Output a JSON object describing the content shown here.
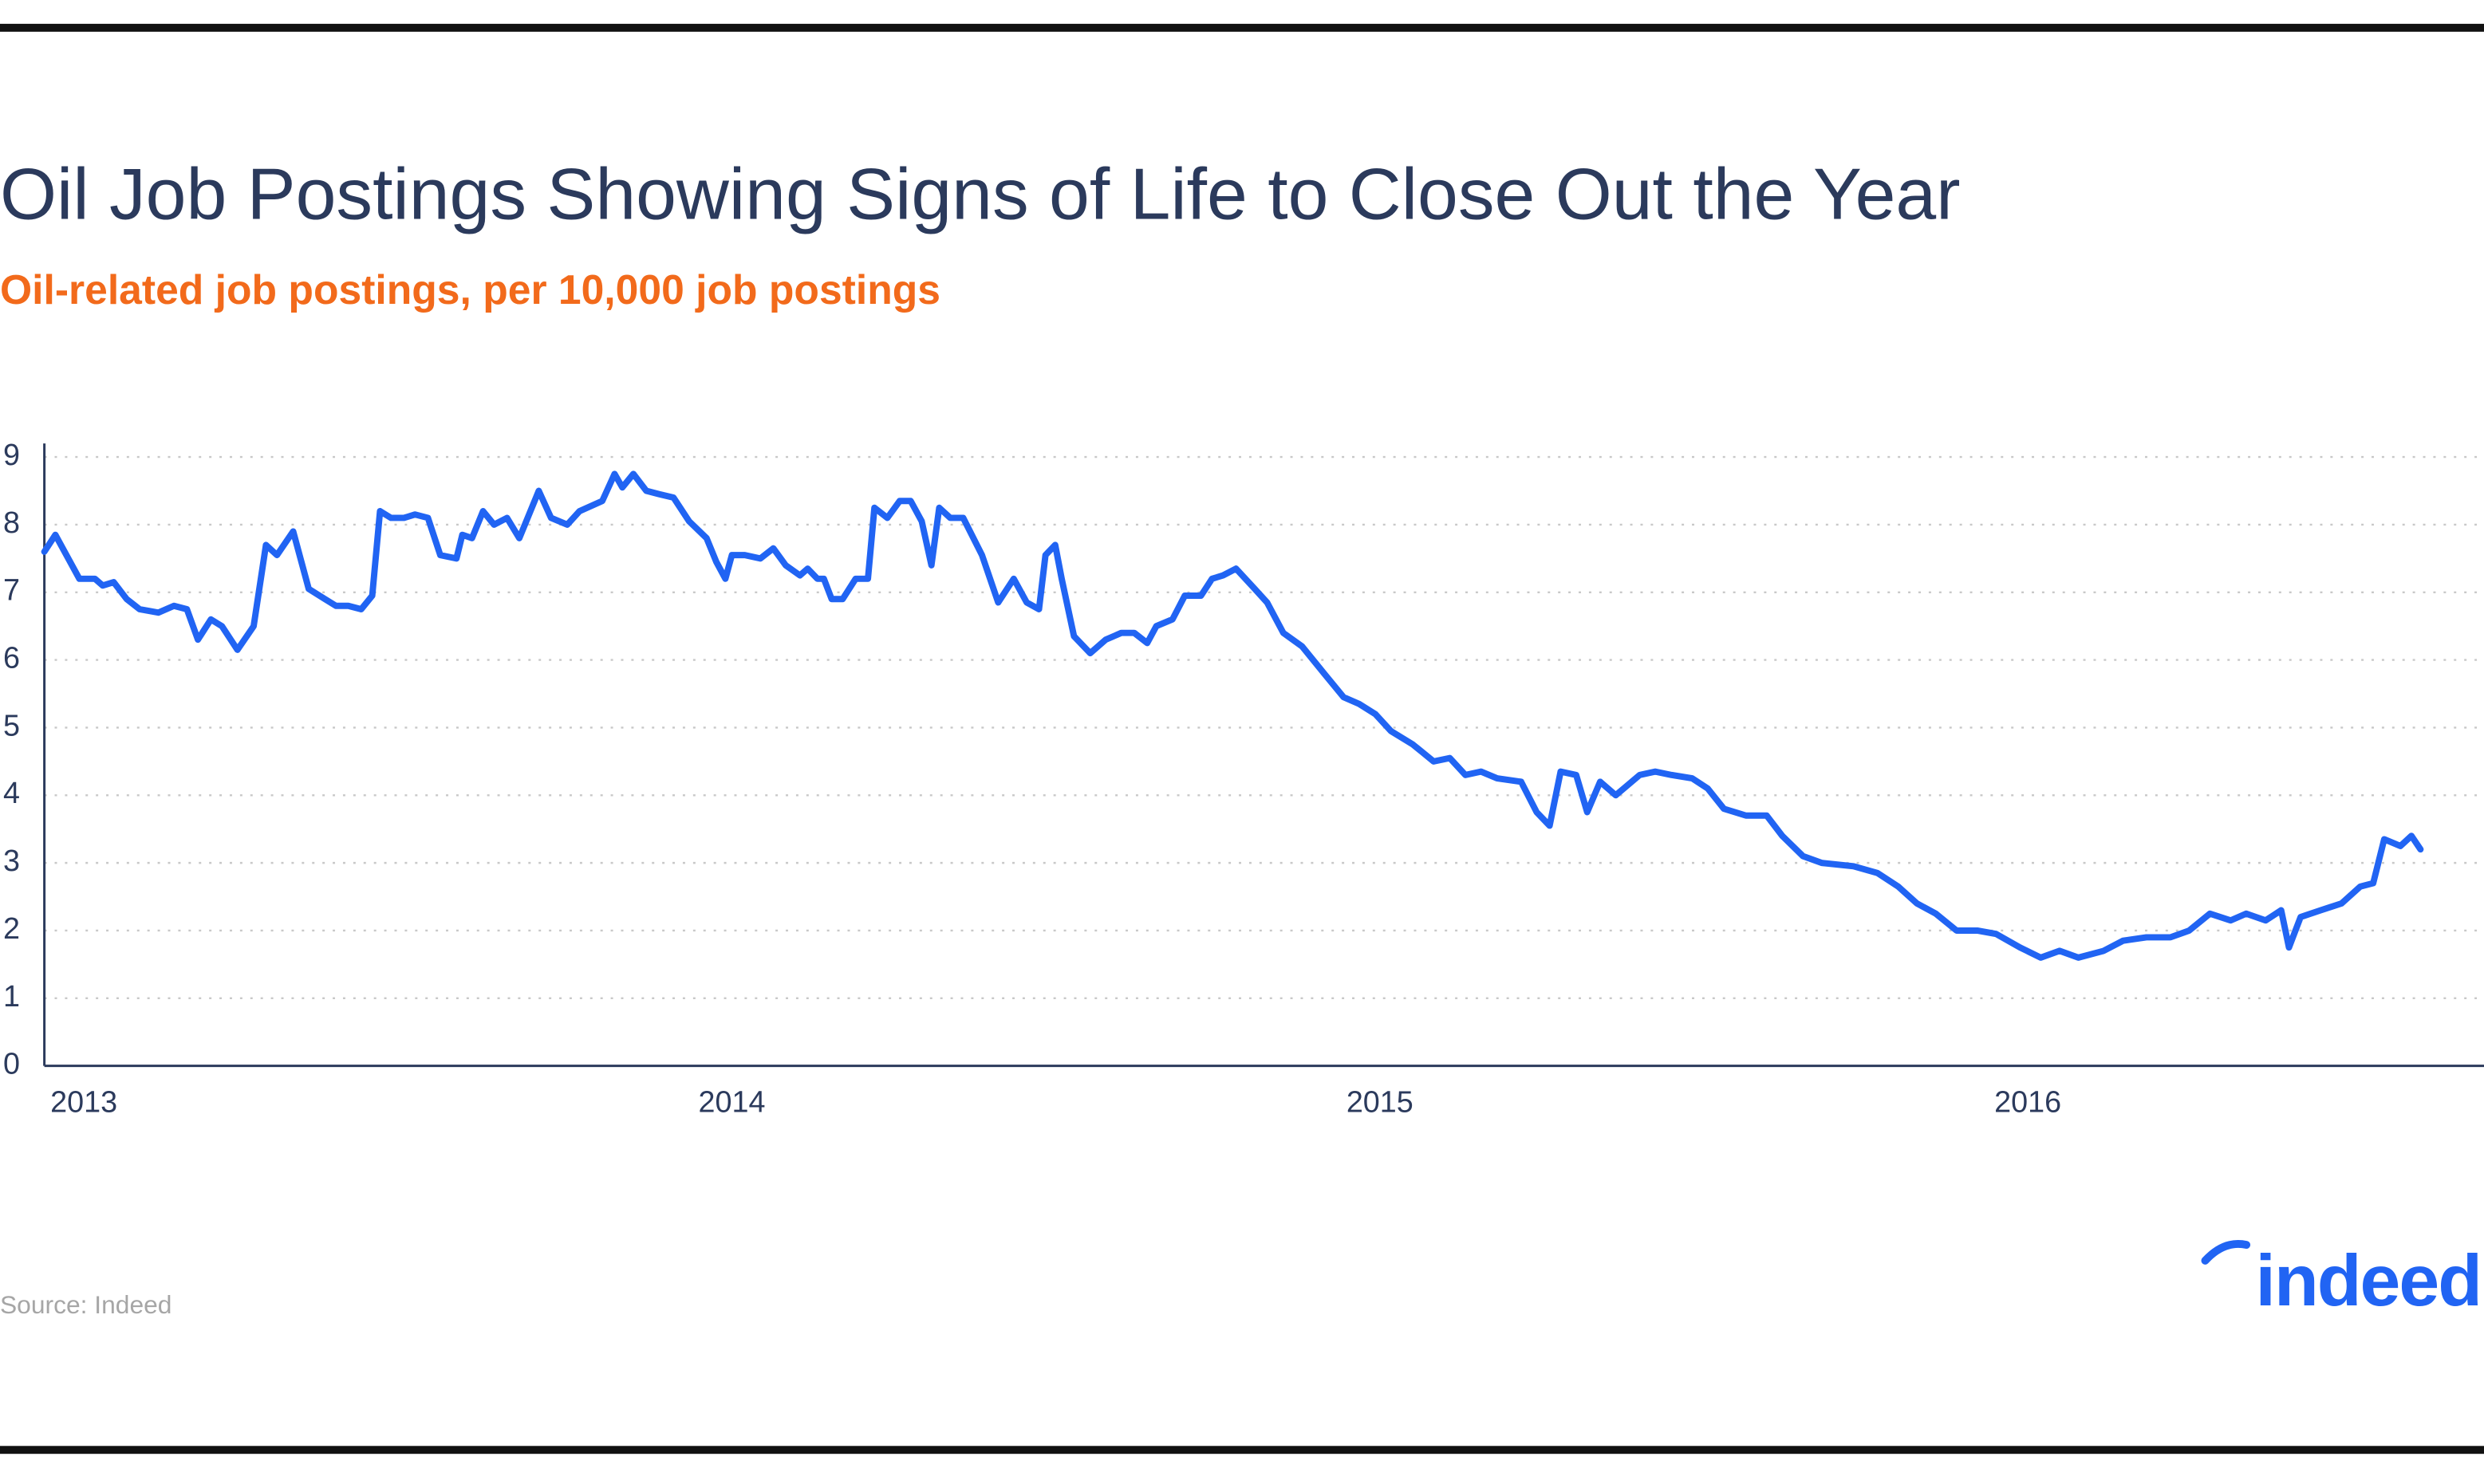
{
  "chart_data": {
    "type": "line",
    "title": "Oil Job Postings Showing Signs of Life to Close Out the Year",
    "subtitle": "Oil-related job postings, per 10,000 job postings",
    "source": "Source: Indeed",
    "color": "#2164f3",
    "grid": true,
    "x": [
      2012.939,
      2012.956,
      2012.993,
      2013.017,
      2013.029,
      2013.046,
      2013.066,
      2013.086,
      2013.115,
      2013.139,
      2013.159,
      2013.176,
      2013.196,
      2013.213,
      2013.237,
      2013.262,
      2013.281,
      2013.298,
      2013.323,
      2013.347,
      2013.372,
      2013.389,
      2013.408,
      2013.428,
      2013.445,
      2013.457,
      2013.474,
      2013.494,
      2013.511,
      2013.531,
      2013.55,
      2013.575,
      2013.584,
      2013.599,
      2013.616,
      2013.633,
      2013.653,
      2013.672,
      2013.702,
      2013.721,
      2013.746,
      2013.765,
      2013.8,
      2013.819,
      2013.831,
      2013.848,
      2013.868,
      2013.888,
      2013.91,
      2013.934,
      2013.961,
      2013.976,
      2013.99,
      2014,
      2014.02,
      2014.044,
      2014.064,
      2014.083,
      2014.105,
      2014.117,
      2014.132,
      2014.142,
      2014.154,
      2014.171,
      2014.191,
      2014.21,
      2014.22,
      2014.24,
      2014.259,
      2014.276,
      2014.293,
      2014.308,
      2014.32,
      2014.337,
      2014.357,
      2014.386,
      2014.411,
      2014.435,
      2014.455,
      2014.474,
      2014.484,
      2014.499,
      2014.509,
      2014.528,
      2014.553,
      2014.577,
      2014.601,
      2014.621,
      2014.641,
      2014.655,
      2014.68,
      2014.699,
      2014.724,
      2014.741,
      2014.758,
      2014.778,
      2014.807,
      2014.826,
      2014.851,
      2014.88,
      2014.914,
      2014.944,
      2014.968,
      2014.993,
      2015.017,
      2015.051,
      2015.083,
      2015.108,
      2015.132,
      2015.156,
      2015.181,
      2015.218,
      2015.242,
      2015.262,
      2015.279,
      2015.303,
      2015.32,
      2015.34,
      2015.364,
      2015.401,
      2015.425,
      2015.45,
      2015.482,
      2015.506,
      2015.531,
      2015.565,
      2015.597,
      2015.621,
      2015.653,
      2015.682,
      2015.731,
      2015.768,
      2015.8,
      2015.829,
      2015.858,
      2015.89,
      2015.922,
      2015.951,
      2015.988,
      2016.02,
      2016.049,
      2016.078,
      2016.117,
      2016.147,
      2016.183,
      2016.22,
      2016.249,
      2016.281,
      2016.313,
      2016.337,
      2016.367,
      2016.391,
      2016.403,
      2016.421,
      2016.452,
      2016.484,
      2016.513,
      2016.533,
      2016.55,
      2016.575,
      2016.592,
      2016.606
    ],
    "values": [
      7.6,
      7.85,
      7.2,
      7.2,
      7.1,
      7.15,
      6.9,
      6.75,
      6.7,
      6.8,
      6.75,
      6.3,
      6.6,
      6.5,
      6.15,
      6.5,
      7.7,
      7.55,
      7.9,
      7.05,
      6.9,
      6.8,
      6.8,
      6.75,
      6.95,
      8.2,
      8.1,
      8.1,
      8.15,
      8.1,
      7.55,
      7.5,
      7.85,
      7.8,
      8.2,
      8.0,
      8.1,
      7.8,
      8.5,
      8.1,
      8.0,
      8.2,
      8.35,
      8.75,
      8.55,
      8.75,
      8.5,
      8.45,
      8.4,
      8.05,
      7.8,
      7.45,
      7.2,
      7.55,
      7.55,
      7.5,
      7.65,
      7.4,
      7.25,
      7.35,
      7.2,
      7.2,
      6.9,
      6.9,
      7.2,
      7.2,
      8.25,
      8.1,
      8.35,
      8.35,
      8.05,
      7.4,
      8.25,
      8.1,
      8.1,
      7.55,
      6.85,
      7.2,
      6.85,
      6.75,
      7.55,
      7.7,
      7.2,
      6.35,
      6.1,
      6.3,
      6.4,
      6.4,
      6.25,
      6.5,
      6.6,
      6.95,
      6.95,
      7.2,
      7.25,
      7.35,
      7.05,
      6.85,
      6.4,
      6.2,
      5.8,
      5.45,
      5.35,
      5.2,
      4.95,
      4.75,
      4.5,
      4.55,
      4.3,
      4.35,
      4.25,
      4.2,
      3.75,
      3.55,
      4.35,
      4.3,
      3.75,
      4.2,
      4.0,
      4.3,
      4.35,
      4.3,
      4.25,
      4.1,
      3.8,
      3.7,
      3.7,
      3.4,
      3.1,
      3.0,
      2.95,
      2.85,
      2.65,
      2.4,
      2.25,
      2.0,
      2.0,
      1.95,
      1.75,
      1.6,
      1.7,
      1.6,
      1.7,
      1.85,
      1.9,
      1.9,
      2.0,
      2.25,
      2.15,
      2.25,
      2.15,
      2.3,
      1.75,
      2.2,
      2.3,
      2.4,
      2.65,
      2.7,
      3.35,
      3.25,
      3.4,
      3.2
    ],
    "xlim": [
      2012.939,
      2016.704
    ],
    "xticks": [
      2013,
      2014,
      2015,
      2016
    ],
    "ylim": [
      0,
      9.2
    ],
    "yticks": [
      0,
      1,
      2,
      3,
      4,
      5,
      6,
      7,
      8,
      9
    ]
  },
  "logo": "indeed"
}
